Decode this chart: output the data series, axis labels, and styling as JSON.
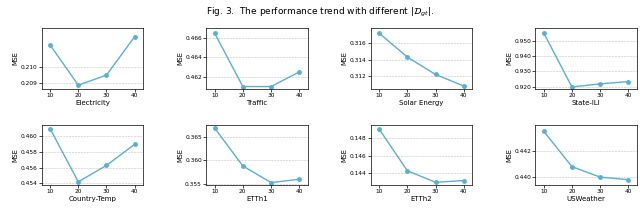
{
  "title": "Fig. 3.  The performance trend with different $|\\mathcal{D}_{gt}|$.",
  "x": [
    10,
    20,
    30,
    40
  ],
  "datasets": [
    {
      "label": "Electricity",
      "y": [
        0.2113,
        0.2089,
        0.2095,
        0.2118
      ],
      "ylim": [
        0.2087,
        0.2123
      ],
      "yticks": [
        0.209,
        0.21
      ]
    },
    {
      "label": "Traffic",
      "y": [
        0.4665,
        0.461,
        0.461,
        0.4625
      ],
      "ylim": [
        0.4608,
        0.467
      ],
      "yticks": [
        0.462,
        0.464,
        0.466
      ]
    },
    {
      "label": "Solar Energy",
      "y": [
        0.3172,
        0.3143,
        0.3122,
        0.3108
      ],
      "ylim": [
        0.3105,
        0.3178
      ],
      "yticks": [
        0.312,
        0.314,
        0.316
      ]
    },
    {
      "label": "State-ILI",
      "y": [
        0.955,
        0.92,
        0.922,
        0.9235
      ],
      "ylim": [
        0.919,
        0.958
      ],
      "yticks": [
        0.92,
        0.93,
        0.94,
        0.95
      ]
    },
    {
      "label": "Country-Temp",
      "y": [
        0.461,
        0.4542,
        0.4563,
        0.459
      ],
      "ylim": [
        0.4538,
        0.4615
      ],
      "yticks": [
        0.454,
        0.456,
        0.458,
        0.46
      ]
    },
    {
      "label": "ETTh1",
      "y": [
        0.3668,
        0.3588,
        0.3553,
        0.356
      ],
      "ylim": [
        0.3548,
        0.3675
      ],
      "yticks": [
        0.355,
        0.36,
        0.365
      ]
    },
    {
      "label": "ETTh2",
      "y": [
        0.149,
        0.1443,
        0.143,
        0.1432
      ],
      "ylim": [
        0.1427,
        0.1495
      ],
      "yticks": [
        0.144,
        0.146,
        0.148
      ]
    },
    {
      "label": "USWeather",
      "y": [
        0.4435,
        0.4408,
        0.44,
        0.4398
      ],
      "ylim": [
        0.4394,
        0.444
      ],
      "yticks": [
        0.44,
        0.442
      ]
    }
  ],
  "line_color": "#5aafd4",
  "marker": "o",
  "markersize": 2.5,
  "linewidth": 1.0
}
